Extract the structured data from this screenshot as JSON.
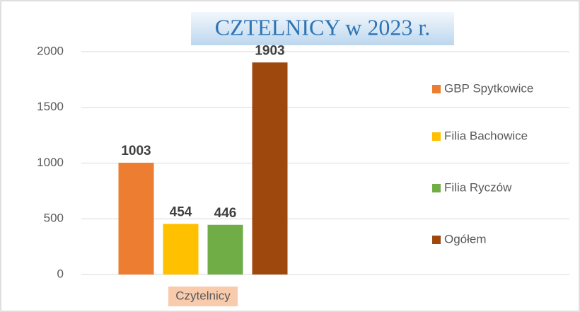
{
  "chart_data": {
    "type": "bar",
    "title": "CZTELNICY w 2023 r.",
    "categories": [
      "Czytelnicy"
    ],
    "series": [
      {
        "name": "GBP Spytkowice",
        "color": "#ed7d31",
        "values": [
          1003
        ]
      },
      {
        "name": "Filia Bachowice",
        "color": "#ffc000",
        "values": [
          454
        ]
      },
      {
        "name": "Filia Ryczów",
        "color": "#70ad47",
        "values": [
          446
        ]
      },
      {
        "name": "Ogółem",
        "color": "#9e480e",
        "values": [
          1903
        ]
      }
    ],
    "ylim": [
      0,
      2000
    ],
    "yticks": [
      0,
      500,
      1000,
      1500,
      2000
    ],
    "grid": true,
    "legend": "right"
  }
}
